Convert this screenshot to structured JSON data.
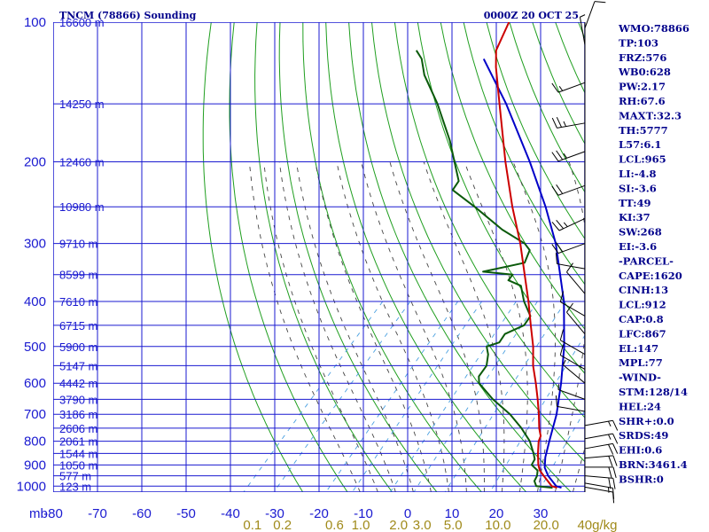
{
  "title": "TNCM (78866) Sounding",
  "date": "0000Z 20 OCT 25",
  "colors": {
    "grid": "#1a1ad0",
    "dry_adiabat": "#1f9e1f",
    "moist_adiabat": "#444444",
    "mixing_ratio": "#4aa0e0",
    "temperature": "#cc0000",
    "dewpoint": "#0b5a0b",
    "parcel": "#0000c8",
    "wind": "#000000",
    "info": "#00008b",
    "mixing_label": "#a08a1a"
  },
  "chart_data": {
    "type": "skew-t",
    "title": "TNCM (78866) Sounding",
    "pressure_unit_label": "mb",
    "pressure_levels": [
      100,
      200,
      300,
      400,
      500,
      600,
      700,
      800,
      900,
      1000
    ],
    "temperature_ticks": [
      -80,
      -70,
      -60,
      -50,
      -40,
      -30,
      -20,
      -10,
      0,
      10,
      20,
      30
    ],
    "height_labels": [
      {
        "p": 100,
        "label": "16600 m"
      },
      {
        "p": 150,
        "label": "14250 m"
      },
      {
        "p": 200,
        "label": "12460 m"
      },
      {
        "p": 250,
        "label": "10980 m"
      },
      {
        "p": 300,
        "label": "9710 m"
      },
      {
        "p": 350,
        "label": "8599 m"
      },
      {
        "p": 400,
        "label": "7610 m"
      },
      {
        "p": 450,
        "label": "6715 m"
      },
      {
        "p": 500,
        "label": "5900 m"
      },
      {
        "p": 550,
        "label": "5147 m"
      },
      {
        "p": 600,
        "label": "4442 m"
      },
      {
        "p": 650,
        "label": "3790 m"
      },
      {
        "p": 700,
        "label": "3186 m"
      },
      {
        "p": 750,
        "label": "2606 m"
      },
      {
        "p": 800,
        "label": "2061 m"
      },
      {
        "p": 850,
        "label": "1544 m"
      },
      {
        "p": 900,
        "label": "1050 m"
      },
      {
        "p": 950,
        "label": "577 m"
      },
      {
        "p": 1000,
        "label": "123 m"
      }
    ],
    "mixing_ratio_labels": [
      "0.1",
      "0.2",
      "0.6",
      "1.0",
      "2.0",
      "3.0",
      "5.0",
      "10.0",
      "20.0",
      "40g/kg"
    ],
    "mixing_ratio_values": [
      0.1,
      0.2,
      0.6,
      1.0,
      2.0,
      3.0,
      5.0,
      10.0,
      20.0,
      40.0
    ],
    "temperature": [
      {
        "p": 1008,
        "t": 28.5
      },
      {
        "p": 1000,
        "t": 27.0
      },
      {
        "p": 950,
        "t": 23.0
      },
      {
        "p": 925,
        "t": 21.0
      },
      {
        "p": 900,
        "t": 19.5
      },
      {
        "p": 850,
        "t": 17.0
      },
      {
        "p": 800,
        "t": 14.6
      },
      {
        "p": 780,
        "t": 14.0
      },
      {
        "p": 750,
        "t": 12.0
      },
      {
        "p": 700,
        "t": 9.0
      },
      {
        "p": 650,
        "t": 5.6
      },
      {
        "p": 600,
        "t": 1.8
      },
      {
        "p": 550,
        "t": -2.5
      },
      {
        "p": 500,
        "t": -6.5
      },
      {
        "p": 450,
        "t": -11.5
      },
      {
        "p": 400,
        "t": -17.0
      },
      {
        "p": 350,
        "t": -23.5
      },
      {
        "p": 300,
        "t": -31.0
      },
      {
        "p": 250,
        "t": -40.5
      },
      {
        "p": 200,
        "t": -51.5
      },
      {
        "p": 150,
        "t": -65.0
      },
      {
        "p": 125,
        "t": -73.5
      },
      {
        "p": 115,
        "t": -77.0
      },
      {
        "p": 100,
        "t": -80.0
      }
    ],
    "dewpoint": [
      {
        "p": 1008,
        "t": 27.5
      },
      {
        "p": 1000,
        "t": 23.5
      },
      {
        "p": 975,
        "t": 22.0
      },
      {
        "p": 950,
        "t": 21.5
      },
      {
        "p": 925,
        "t": 20.5
      },
      {
        "p": 900,
        "t": 18.0
      },
      {
        "p": 875,
        "t": 17.5
      },
      {
        "p": 850,
        "t": 16.0
      },
      {
        "p": 800,
        "t": 12.6
      },
      {
        "p": 750,
        "t": 8.0
      },
      {
        "p": 700,
        "t": 2.5
      },
      {
        "p": 650,
        "t": -4.5
      },
      {
        "p": 600,
        "t": -11.0
      },
      {
        "p": 580,
        "t": -12.5
      },
      {
        "p": 550,
        "t": -13.0
      },
      {
        "p": 520,
        "t": -15.0
      },
      {
        "p": 500,
        "t": -17.0
      },
      {
        "p": 490,
        "t": -15.0
      },
      {
        "p": 470,
        "t": -15.5
      },
      {
        "p": 450,
        "t": -13.0
      },
      {
        "p": 430,
        "t": -13.5
      },
      {
        "p": 400,
        "t": -18.0
      },
      {
        "p": 370,
        "t": -22.0
      },
      {
        "p": 360,
        "t": -26.0
      },
      {
        "p": 350,
        "t": -26.2
      },
      {
        "p": 345,
        "t": -33.5
      },
      {
        "p": 330,
        "t": -26.0
      },
      {
        "p": 310,
        "t": -27.5
      },
      {
        "p": 300,
        "t": -30.0
      },
      {
        "p": 280,
        "t": -38.0
      },
      {
        "p": 250,
        "t": -49.0
      },
      {
        "p": 230,
        "t": -57.5
      },
      {
        "p": 220,
        "t": -58.0
      },
      {
        "p": 200,
        "t": -63.0
      },
      {
        "p": 180,
        "t": -68.5
      },
      {
        "p": 150,
        "t": -79.0
      },
      {
        "p": 130,
        "t": -88.0
      },
      {
        "p": 120,
        "t": -92.0
      },
      {
        "p": 115,
        "t": -95.0
      }
    ],
    "parcel": [
      {
        "p": 1008,
        "t": 29.5
      },
      {
        "p": 1000,
        "t": 28.0
      },
      {
        "p": 950,
        "t": 24.0
      },
      {
        "p": 912,
        "t": 21.5
      },
      {
        "p": 867,
        "t": 19.5
      },
      {
        "p": 800,
        "t": 17.0
      },
      {
        "p": 700,
        "t": 13.0
      },
      {
        "p": 600,
        "t": 7.5
      },
      {
        "p": 500,
        "t": 0.5
      },
      {
        "p": 400,
        "t": -9.0
      },
      {
        "p": 300,
        "t": -23.0
      },
      {
        "p": 250,
        "t": -33.0
      },
      {
        "p": 200,
        "t": -46.0
      },
      {
        "p": 150,
        "t": -63.5
      },
      {
        "p": 120,
        "t": -78.0
      }
    ],
    "wind_barbs": [
      {
        "p": 103,
        "dir": 20,
        "spd": 10
      },
      {
        "p": 112,
        "dir": 350,
        "spd": 5
      },
      {
        "p": 135,
        "dir": 250,
        "spd": 15
      },
      {
        "p": 165,
        "dir": 260,
        "spd": 25
      },
      {
        "p": 190,
        "dir": 250,
        "spd": 25
      },
      {
        "p": 225,
        "dir": 250,
        "spd": 20
      },
      {
        "p": 265,
        "dir": 245,
        "spd": 25
      },
      {
        "p": 300,
        "dir": 250,
        "spd": 20
      },
      {
        "p": 340,
        "dir": 280,
        "spd": 10
      },
      {
        "p": 385,
        "dir": 320,
        "spd": 10
      },
      {
        "p": 430,
        "dir": 300,
        "spd": 10
      },
      {
        "p": 470,
        "dir": 320,
        "spd": 10
      },
      {
        "p": 520,
        "dir": 300,
        "spd": 10
      },
      {
        "p": 560,
        "dir": 300,
        "spd": 10
      },
      {
        "p": 600,
        "dir": 310,
        "spd": 5
      },
      {
        "p": 650,
        "dir": 290,
        "spd": 5
      },
      {
        "p": 690,
        "dir": 280,
        "spd": 10
      },
      {
        "p": 740,
        "dir": 80,
        "spd": 15
      },
      {
        "p": 790,
        "dir": 80,
        "spd": 15
      },
      {
        "p": 830,
        "dir": 80,
        "spd": 20
      },
      {
        "p": 870,
        "dir": 85,
        "spd": 20
      },
      {
        "p": 910,
        "dir": 90,
        "spd": 20
      },
      {
        "p": 950,
        "dir": 95,
        "spd": 20
      },
      {
        "p": 985,
        "dir": 100,
        "spd": 15
      },
      {
        "p": 1005,
        "dir": 100,
        "spd": 10
      }
    ]
  },
  "info": [
    "WMO:78866",
    "TP:103",
    "FRZ:576",
    "WB0:628",
    "PW:2.17",
    "RH:67.6",
    "MAXT:32.3",
    "TH:5777",
    "L57:6.1",
    "LCL:965",
    "LI:-4.8",
    "SI:-3.6",
    "TT:49",
    "KI:37",
    "SW:268",
    "EI:-3.6",
    "-PARCEL-",
    "CAPE:1620",
    "CINH:13",
    "LCL:912",
    "CAP:0.8",
    "LFC:867",
    "EL:147",
    "MPL:77",
    "-WIND-",
    "STM:128/14",
    "HEL:24",
    "SHR+:0.0",
    "SRDS:49",
    "EHI:0.6",
    "BRN:3461.4",
    "BSHR:0"
  ]
}
